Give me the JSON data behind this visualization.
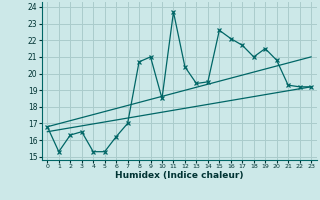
{
  "title": "",
  "xlabel": "Humidex (Indice chaleur)",
  "ylabel": "",
  "bg_color": "#cce8e8",
  "grid_color": "#aacccc",
  "line_color": "#006666",
  "xlim": [
    -0.5,
    23.5
  ],
  "ylim": [
    14.8,
    24.3
  ],
  "xticks": [
    0,
    1,
    2,
    3,
    4,
    5,
    6,
    7,
    8,
    9,
    10,
    11,
    12,
    13,
    14,
    15,
    16,
    17,
    18,
    19,
    20,
    21,
    22,
    23
  ],
  "yticks": [
    15,
    16,
    17,
    18,
    19,
    20,
    21,
    22,
    23,
    24
  ],
  "series1_x": [
    0,
    1,
    2,
    3,
    4,
    5,
    6,
    7,
    8,
    9,
    10,
    11,
    12,
    13,
    14,
    15,
    16,
    17,
    18,
    19,
    20,
    21,
    22,
    23
  ],
  "series1_y": [
    16.8,
    15.3,
    16.3,
    16.5,
    15.3,
    15.3,
    16.2,
    17.0,
    20.7,
    21.0,
    18.5,
    23.7,
    20.4,
    19.4,
    19.5,
    22.6,
    22.1,
    21.7,
    21.0,
    21.5,
    20.8,
    19.3,
    19.2,
    19.2
  ],
  "series2_x": [
    0,
    23
  ],
  "series2_y": [
    16.5,
    19.2
  ],
  "series3_x": [
    0,
    23
  ],
  "series3_y": [
    16.8,
    21.0
  ]
}
